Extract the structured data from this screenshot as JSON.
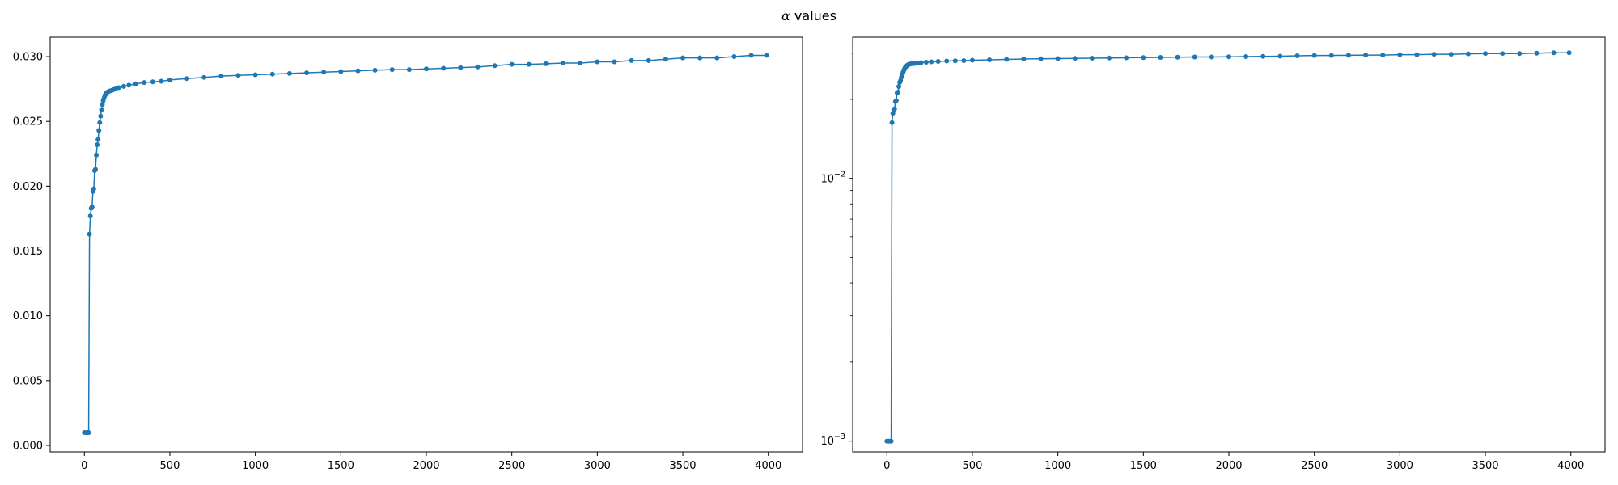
{
  "figure": {
    "title_symbol": "α",
    "title_text": " values"
  },
  "colors": {
    "series": "#1f77b4",
    "axis": "#000000"
  },
  "chart_data": [
    {
      "type": "line",
      "yscale": "linear",
      "xlim": [
        -200,
        4200
      ],
      "ylim": [
        -0.0005,
        0.0315
      ],
      "xticks": [
        0,
        500,
        1000,
        1500,
        2000,
        2500,
        3000,
        3500,
        4000
      ],
      "xtick_labels": [
        "0",
        "500",
        "1000",
        "1500",
        "2000",
        "2500",
        "3000",
        "3500",
        "4000"
      ],
      "yticks": [
        0.0,
        0.005,
        0.01,
        0.015,
        0.02,
        0.025,
        0.03
      ],
      "ytick_labels": [
        "0.000",
        "0.005",
        "0.010",
        "0.015",
        "0.020",
        "0.025",
        "0.030"
      ],
      "grid": false,
      "marker": "circle",
      "series": [
        {
          "x": [
            0,
            10,
            20,
            25,
            30,
            35,
            40,
            45,
            50,
            55,
            60,
            65,
            70,
            75,
            80,
            85,
            90,
            95,
            100,
            105,
            110,
            115,
            120,
            125,
            130,
            135,
            140,
            150,
            160,
            170,
            180,
            200,
            230,
            260,
            300,
            350,
            400,
            450,
            500,
            600,
            700,
            800,
            900,
            1000,
            1100,
            1200,
            1300,
            1400,
            1500,
            1600,
            1700,
            1800,
            1900,
            2000,
            2100,
            2200,
            2300,
            2400,
            2500,
            2600,
            2700,
            2800,
            2900,
            3000,
            3100,
            3200,
            3300,
            3400,
            3500,
            3600,
            3700,
            3800,
            3900,
            3990
          ],
          "y": [
            0.001,
            0.001,
            0.001,
            0.001,
            0.0163,
            0.0177,
            0.0183,
            0.0184,
            0.0196,
            0.0198,
            0.0212,
            0.0213,
            0.0224,
            0.0232,
            0.0236,
            0.0243,
            0.0249,
            0.0254,
            0.0259,
            0.0263,
            0.0266,
            0.0268,
            0.027,
            0.0271,
            0.0272,
            0.02725,
            0.0273,
            0.02735,
            0.0274,
            0.02745,
            0.0275,
            0.0276,
            0.0277,
            0.0278,
            0.0279,
            0.028,
            0.02805,
            0.0281,
            0.0282,
            0.0283,
            0.0284,
            0.0285,
            0.02855,
            0.0286,
            0.02865,
            0.0287,
            0.02875,
            0.0288,
            0.02885,
            0.0289,
            0.02895,
            0.029,
            0.029,
            0.02905,
            0.0291,
            0.02915,
            0.0292,
            0.0293,
            0.0294,
            0.0294,
            0.02945,
            0.0295,
            0.0295,
            0.0296,
            0.0296,
            0.0297,
            0.0297,
            0.0298,
            0.0299,
            0.0299,
            0.0299,
            0.03,
            0.0301,
            0.0301
          ]
        }
      ]
    },
    {
      "type": "line",
      "yscale": "log",
      "xlim": [
        -200,
        4200
      ],
      "ylim": [
        0.00091,
        0.0345
      ],
      "xticks": [
        0,
        500,
        1000,
        1500,
        2000,
        2500,
        3000,
        3500,
        4000
      ],
      "xtick_labels": [
        "0",
        "500",
        "1000",
        "1500",
        "2000",
        "2500",
        "3000",
        "3500",
        "4000"
      ],
      "yticks_major": [
        0.001,
        0.01
      ],
      "ytick_labels_major": [
        "10^-3",
        "10^-2"
      ],
      "yticks_minor": [
        0.002,
        0.003,
        0.004,
        0.005,
        0.006,
        0.007,
        0.008,
        0.009,
        0.02,
        0.03
      ],
      "grid": false,
      "marker": "circle",
      "series": [
        {
          "x": [
            0,
            10,
            20,
            25,
            30,
            35,
            40,
            45,
            50,
            55,
            60,
            65,
            70,
            75,
            80,
            85,
            90,
            95,
            100,
            105,
            110,
            115,
            120,
            125,
            130,
            135,
            140,
            150,
            160,
            170,
            180,
            200,
            230,
            260,
            300,
            350,
            400,
            450,
            500,
            600,
            700,
            800,
            900,
            1000,
            1100,
            1200,
            1300,
            1400,
            1500,
            1600,
            1700,
            1800,
            1900,
            2000,
            2100,
            2200,
            2300,
            2400,
            2500,
            2600,
            2700,
            2800,
            2900,
            3000,
            3100,
            3200,
            3300,
            3400,
            3500,
            3600,
            3700,
            3800,
            3900,
            3990
          ],
          "y": [
            0.001,
            0.001,
            0.001,
            0.001,
            0.0163,
            0.0177,
            0.0183,
            0.0184,
            0.0196,
            0.0198,
            0.0212,
            0.0213,
            0.0224,
            0.0232,
            0.0236,
            0.0243,
            0.0249,
            0.0254,
            0.0259,
            0.0263,
            0.0266,
            0.0268,
            0.027,
            0.0271,
            0.0272,
            0.02725,
            0.0273,
            0.02735,
            0.0274,
            0.02745,
            0.0275,
            0.0276,
            0.0277,
            0.0278,
            0.0279,
            0.028,
            0.02805,
            0.0281,
            0.0282,
            0.0283,
            0.0284,
            0.0285,
            0.02855,
            0.0286,
            0.02865,
            0.0287,
            0.02875,
            0.0288,
            0.02885,
            0.0289,
            0.02895,
            0.029,
            0.029,
            0.02905,
            0.0291,
            0.02915,
            0.0292,
            0.0293,
            0.0294,
            0.0294,
            0.02945,
            0.0295,
            0.0295,
            0.0296,
            0.0296,
            0.0297,
            0.0297,
            0.0298,
            0.0299,
            0.0299,
            0.0299,
            0.03,
            0.0301,
            0.0301
          ]
        }
      ]
    }
  ]
}
